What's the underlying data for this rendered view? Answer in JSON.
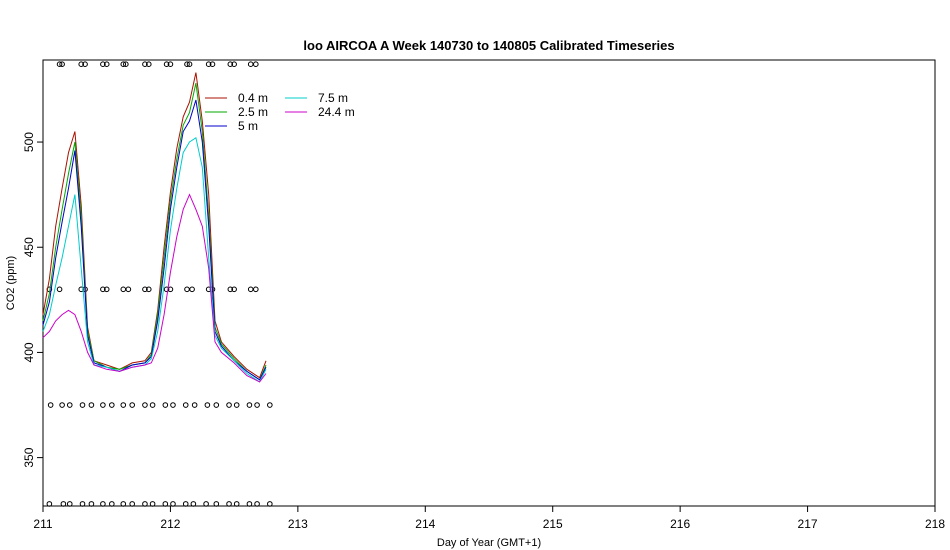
{
  "chart_data": {
    "type": "line",
    "title": "loo AIRCOA A  Week 140730 to 140805  Calibrated Timeseries",
    "xlabel": "Day of Year (GMT+1)",
    "ylabel": "CO2 (ppm)",
    "xlim": [
      211,
      218
    ],
    "ylim": [
      327,
      539
    ],
    "xticks": [
      211,
      212,
      213,
      214,
      215,
      216,
      217,
      218
    ],
    "yticks": [
      350,
      400,
      450,
      500
    ],
    "grid": false,
    "legend_position": "top-left",
    "series": [
      {
        "name": "0.4 m",
        "color": "#aa1100",
        "x": [
          211.0,
          211.05,
          211.1,
          211.15,
          211.2,
          211.25,
          211.3,
          211.35,
          211.4,
          211.5,
          211.6,
          211.7,
          211.8,
          211.85,
          211.9,
          211.95,
          212.0,
          212.05,
          212.1,
          212.15,
          212.2,
          212.25,
          212.3,
          212.35,
          212.4,
          212.5,
          212.6,
          212.7,
          212.75
        ],
        "y": [
          418,
          435,
          460,
          478,
          495,
          505,
          470,
          412,
          396,
          394,
          392,
          395,
          396,
          400,
          420,
          450,
          476,
          497,
          512,
          519,
          533,
          510,
          475,
          415,
          405,
          398,
          392,
          388,
          396
        ]
      },
      {
        "name": "2.5 m",
        "color": "#00aa00",
        "x": [
          211.0,
          211.05,
          211.1,
          211.15,
          211.2,
          211.25,
          211.3,
          211.35,
          211.4,
          211.5,
          211.6,
          211.7,
          211.8,
          211.85,
          211.9,
          211.95,
          212.0,
          212.05,
          212.1,
          212.15,
          212.2,
          212.25,
          212.3,
          212.35,
          212.4,
          212.5,
          212.6,
          212.7,
          212.75
        ],
        "y": [
          415,
          428,
          450,
          468,
          485,
          500,
          465,
          410,
          396,
          393,
          392,
          394,
          395,
          399,
          418,
          445,
          472,
          492,
          508,
          514,
          528,
          505,
          465,
          412,
          404,
          397,
          391,
          387,
          394
        ]
      },
      {
        "name": "5 m",
        "color": "#0000cc",
        "x": [
          211.0,
          211.05,
          211.1,
          211.15,
          211.2,
          211.25,
          211.3,
          211.35,
          211.4,
          211.5,
          211.6,
          211.7,
          211.8,
          211.85,
          211.9,
          211.95,
          212.0,
          212.05,
          212.1,
          212.15,
          212.2,
          212.25,
          212.3,
          212.35,
          212.4,
          212.5,
          212.6,
          212.7,
          212.75
        ],
        "y": [
          413,
          424,
          445,
          462,
          478,
          496,
          460,
          408,
          395,
          393,
          391,
          394,
          395,
          398,
          415,
          440,
          468,
          488,
          505,
          510,
          520,
          500,
          460,
          410,
          403,
          396,
          391,
          387,
          393
        ]
      },
      {
        "name": "7.5 m",
        "color": "#00cccc",
        "x": [
          211.0,
          211.05,
          211.1,
          211.15,
          211.2,
          211.25,
          211.3,
          211.35,
          211.4,
          211.5,
          211.6,
          211.7,
          211.8,
          211.85,
          211.9,
          211.95,
          212.0,
          212.05,
          212.1,
          212.15,
          212.2,
          212.25,
          212.3,
          212.35,
          212.4,
          212.5,
          212.6,
          212.7,
          212.75
        ],
        "y": [
          410,
          418,
          432,
          445,
          460,
          475,
          440,
          405,
          394,
          393,
          391,
          393,
          394,
          397,
          410,
          432,
          458,
          478,
          495,
          500,
          502,
          488,
          445,
          408,
          402,
          396,
          390,
          386,
          392
        ]
      },
      {
        "name": "24.4 m",
        "color": "#cc00cc",
        "x": [
          211.0,
          211.05,
          211.1,
          211.15,
          211.2,
          211.25,
          211.3,
          211.35,
          211.4,
          211.5,
          211.6,
          211.7,
          211.8,
          211.85,
          211.9,
          211.95,
          212.0,
          212.05,
          212.1,
          212.15,
          212.2,
          212.25,
          212.3,
          212.35,
          212.4,
          212.5,
          212.6,
          212.7,
          212.75
        ],
        "y": [
          407,
          410,
          415,
          418,
          420,
          418,
          410,
          400,
          394,
          392,
          391,
          393,
          394,
          395,
          402,
          418,
          438,
          455,
          468,
          475,
          468,
          460,
          440,
          405,
          400,
          395,
          389,
          386,
          390
        ]
      }
    ],
    "marker_rows": [
      {
        "y": 537,
        "x": [
          211.13,
          211.15,
          211.3,
          211.33,
          211.47,
          211.5,
          211.63,
          211.65,
          211.8,
          211.83,
          211.97,
          212.0,
          212.13,
          212.15,
          212.3,
          212.33,
          212.47,
          212.5,
          212.63,
          212.67
        ]
      },
      {
        "y": 430,
        "x": [
          211.05,
          211.13,
          211.3,
          211.33,
          211.47,
          211.5,
          211.63,
          211.67,
          211.8,
          211.83,
          211.97,
          212.0,
          212.13,
          212.17,
          212.3,
          212.33,
          212.47,
          212.5,
          212.63,
          212.67
        ]
      },
      {
        "y": 375,
        "x": [
          211.06,
          211.15,
          211.21,
          211.31,
          211.38,
          211.47,
          211.54,
          211.63,
          211.7,
          211.8,
          211.86,
          211.96,
          212.02,
          212.12,
          212.19,
          212.29,
          212.36,
          212.46,
          212.52,
          212.62,
          212.68,
          212.78
        ]
      },
      {
        "y": 328,
        "x": [
          211.05,
          211.16,
          211.21,
          211.31,
          211.38,
          211.47,
          211.54,
          211.63,
          211.7,
          211.8,
          211.86,
          211.96,
          212.02,
          212.12,
          212.18,
          212.28,
          212.36,
          212.46,
          212.52,
          212.62,
          212.68,
          212.78
        ]
      }
    ]
  }
}
